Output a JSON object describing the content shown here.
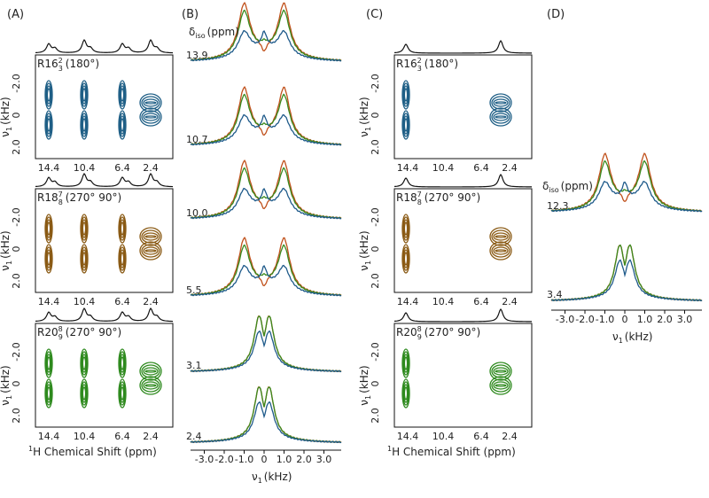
{
  "panels": [
    {
      "label": "(A)",
      "plots": [
        {
          "sequence": "R16",
          "sup": "2",
          "sub": "3",
          "phase": "(180°)",
          "y_ticks": [
            "-2.0",
            "0",
            "2.0"
          ],
          "x_ticks": [
            "14.4",
            "10.4",
            "6.4",
            "2.4"
          ]
        },
        {
          "sequence": "R18",
          "sup": "7",
          "sub": "8",
          "phase": "(270° 90°)",
          "y_ticks": [
            "-2.0",
            "0",
            "2.0"
          ],
          "x_ticks": [
            "14.4",
            "10.4",
            "6.4",
            "2.4"
          ]
        },
        {
          "sequence": "R20",
          "sup": "8",
          "sub": "9",
          "phase": "(270° 90°)",
          "y_ticks": [
            "-2.0",
            "0",
            "2.0"
          ],
          "x_ticks": [
            "14.4",
            "10.4",
            "6.4",
            "2.4"
          ]
        }
      ],
      "y_label": {
        "main": "ν",
        "sub": "1",
        "unit": "(kHz)"
      },
      "x_label": {
        "sup": "1",
        "text": "H Chemical Shift (ppm)"
      }
    },
    {
      "label": "(B)",
      "header": {
        "main": "δ",
        "sub": "iso",
        "unit": "(ppm)"
      },
      "spectra": [
        "13.9",
        "10.7",
        "10.0",
        "5.5",
        "3.1",
        "2.4"
      ],
      "x_ticks": [
        "3.0",
        "2.0",
        "1.0",
        "0",
        "-1.0",
        "-2.0",
        "-3.0"
      ],
      "x_label": {
        "main": "ν",
        "sub": "1",
        "unit": "(kHz)"
      }
    },
    {
      "label": "(C)",
      "plots": [
        {
          "sequence": "R16",
          "sup": "2",
          "sub": "3",
          "phase": "(180°)",
          "y_ticks": [
            "-2.0",
            "0",
            "2.0"
          ],
          "x_ticks": [
            "14.4",
            "10.4",
            "6.4",
            "2.4"
          ]
        },
        {
          "sequence": "R18",
          "sup": "7",
          "sub": "8",
          "phase": "(270° 90°)",
          "y_ticks": [
            "-2.0",
            "0",
            "2.0"
          ],
          "x_ticks": [
            "14.4",
            "10.4",
            "6.4",
            "2.4"
          ]
        },
        {
          "sequence": "R20",
          "sup": "8",
          "sub": "9",
          "phase": "(270° 90°)",
          "y_ticks": [
            "-2.0",
            "0",
            "2.0"
          ],
          "x_ticks": [
            "14.4",
            "10.4",
            "6.4",
            "2.4"
          ]
        }
      ],
      "y_label": {
        "main": "ν",
        "sub": "1",
        "unit": "(kHz)"
      },
      "x_label": {
        "sup": "1",
        "text": "H Chemical Shift (ppm)"
      }
    },
    {
      "label": "(D)",
      "header": {
        "main": "δ",
        "sub": "iso",
        "unit": "(ppm)"
      },
      "spectra": [
        "12.3",
        "3.4"
      ],
      "x_ticks": [
        "3.0",
        "2.0",
        "1.0",
        "0",
        "-1.0",
        "-2.0",
        "-3.0"
      ],
      "x_label": {
        "main": "ν",
        "sub": "1",
        "unit": "(kHz)"
      }
    }
  ]
}
